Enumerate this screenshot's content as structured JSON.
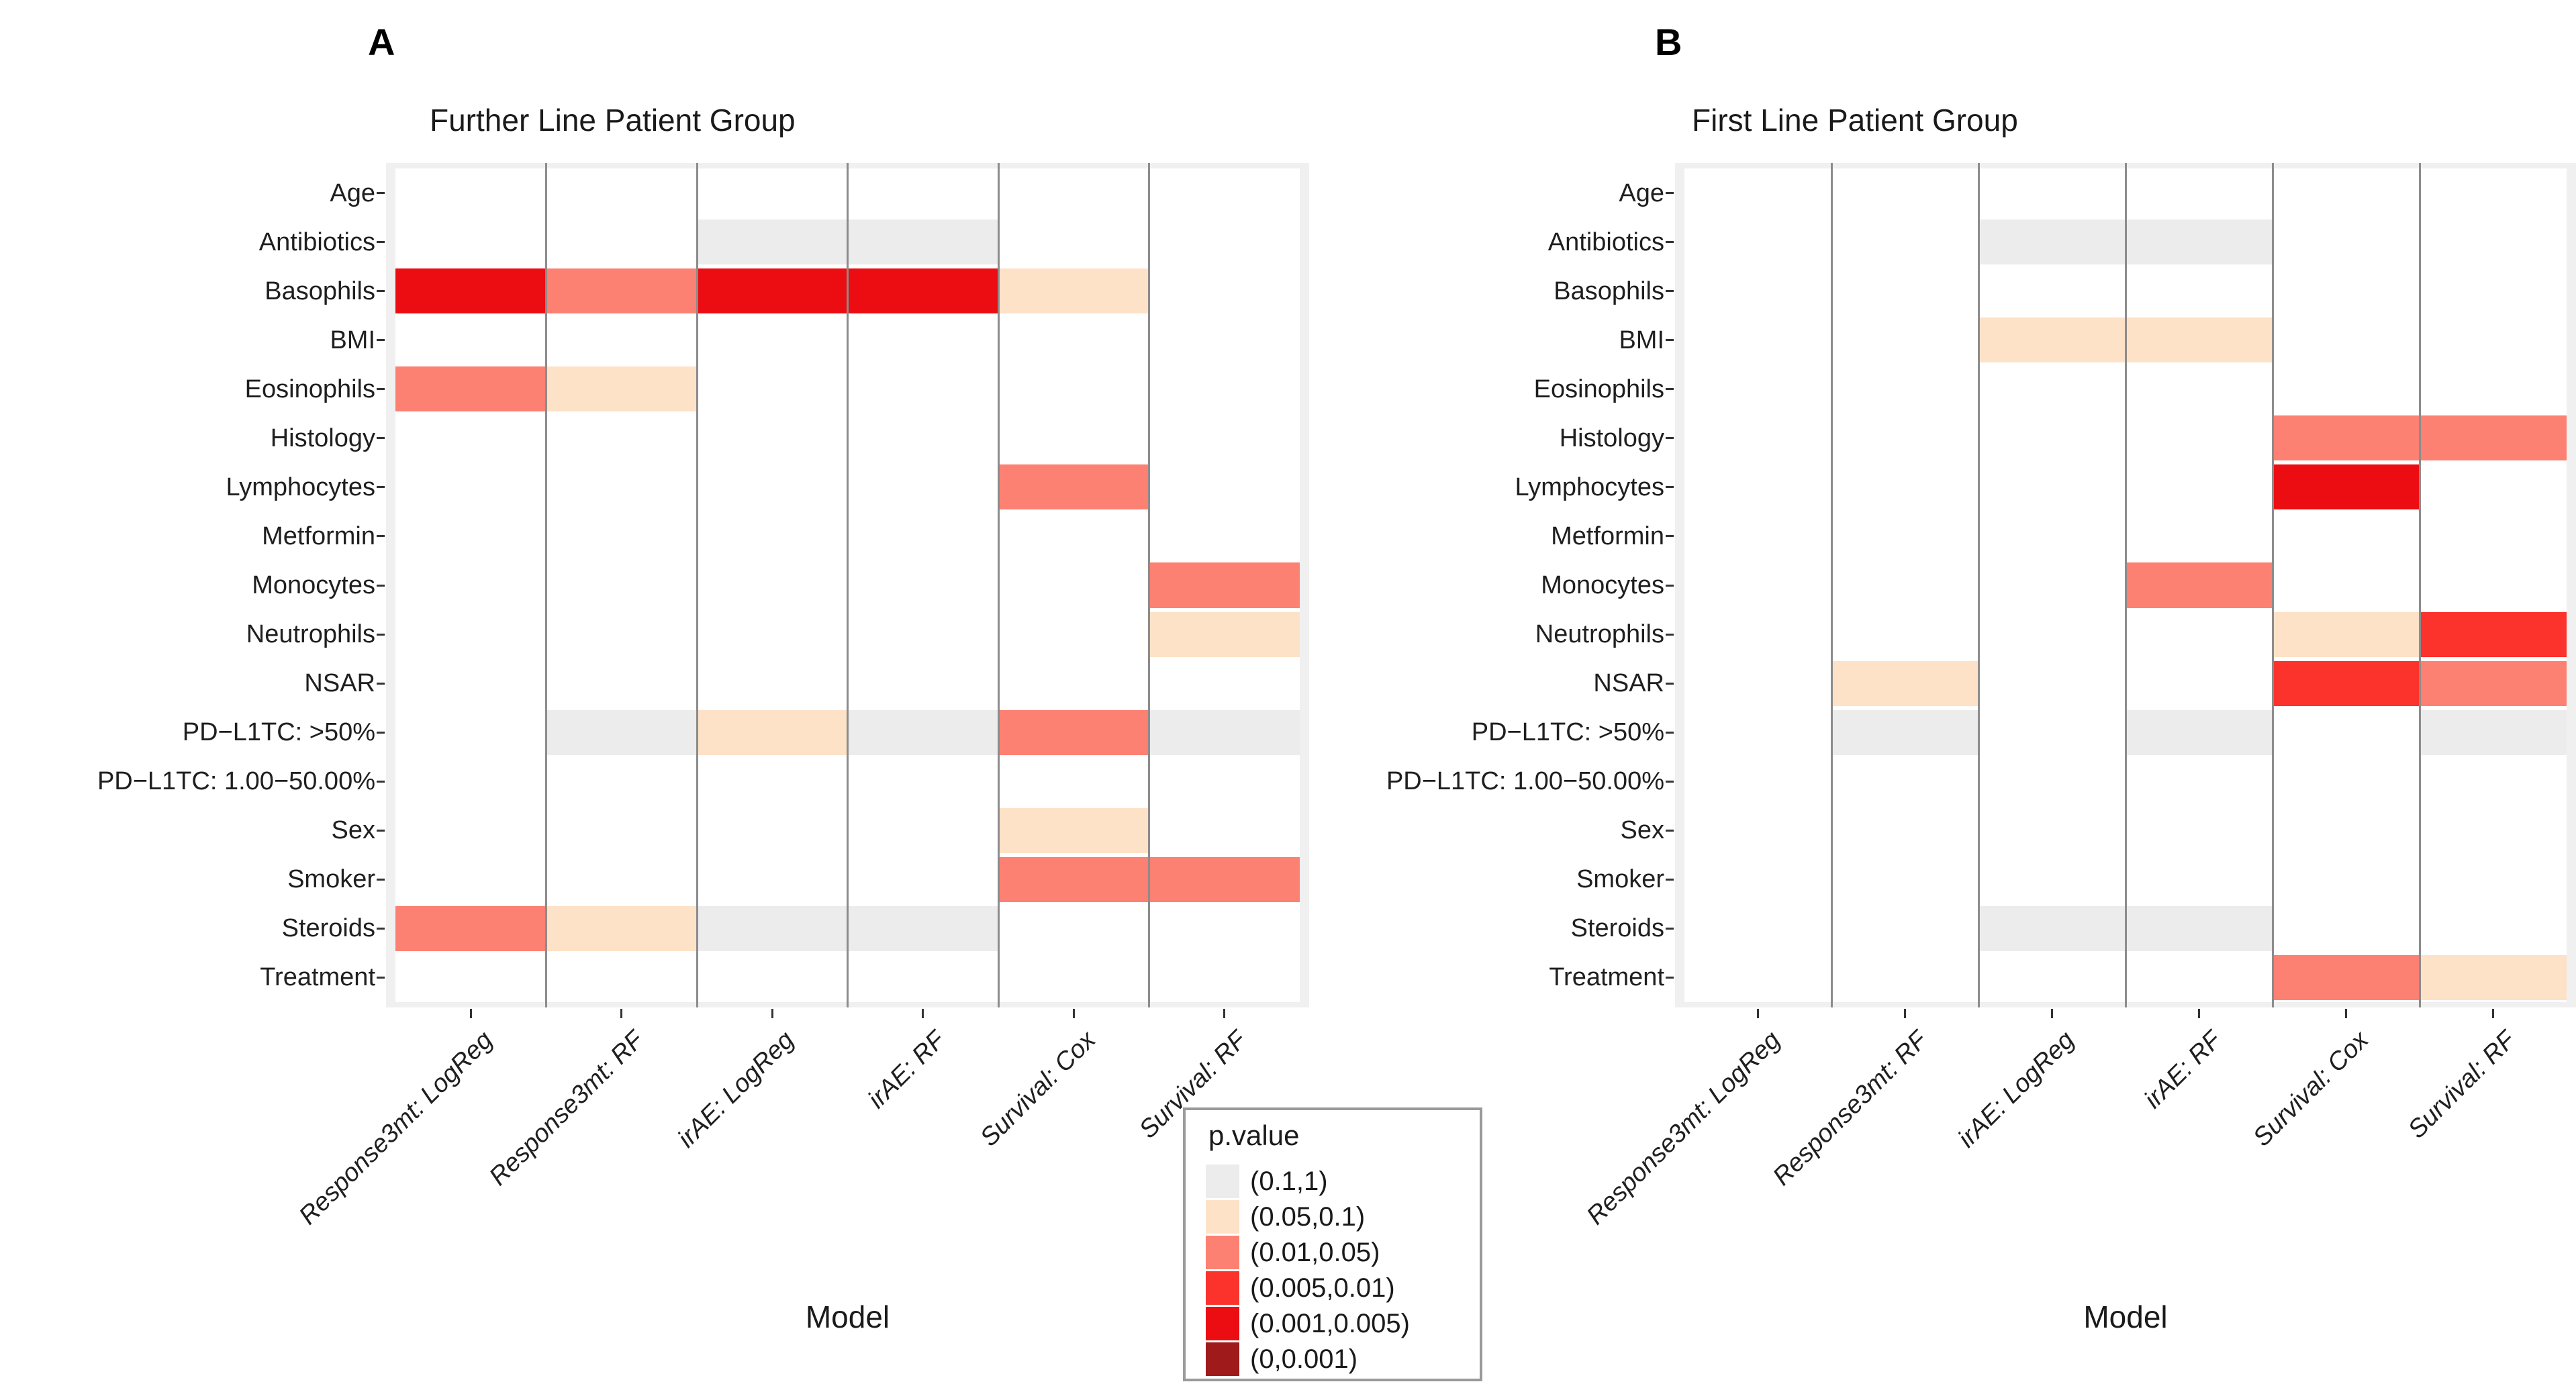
{
  "colors": {
    "panel_background": "#F0F0F0",
    "column_background": "#FFFFFF",
    "separator": "#8C8C8C",
    "tick": "#333333",
    "text": "#1A1A1A"
  },
  "legend": {
    "title": "p.value",
    "entries": [
      {
        "label": "(0.1,1)",
        "color": "#ECECEC"
      },
      {
        "label": "(0.05,0.1)",
        "color": "#FDE2C8"
      },
      {
        "label": "(0.01,0.05)",
        "color": "#FC8172"
      },
      {
        "label": "(0.005,0.01)",
        "color": "#FB332C"
      },
      {
        "label": "(0.001,0.005)",
        "color": "#EB0D11"
      },
      {
        "label": "(0,0.001)",
        "color": "#9E1A1B"
      }
    ]
  },
  "chart_data": [
    {
      "type": "heatmap",
      "panel_label": "A",
      "title": "Further Line Patient Group",
      "xlabel": "Model",
      "ylabel": "",
      "legend_position": "bottom center, between panels",
      "columns": [
        "Response3mt: LogReg",
        "Response3mt: RF",
        "irAE: LogReg",
        "irAE: RF",
        "Survival: Cox",
        "Survival: RF"
      ],
      "rows": [
        "Age",
        "Antibiotics",
        "Basophils",
        "BMI",
        "Eosinophils",
        "Histology",
        "Lymphocytes",
        "Metformin",
        "Monocytes",
        "Neutrophils",
        "NSAR",
        "PD−L1TC: >50%",
        "PD−L1TC: 1.00−50.00%",
        "Sex",
        "Smoker",
        "Steroids",
        "Treatment"
      ],
      "cells": [
        {
          "row": "Antibiotics",
          "col": "irAE: LogReg",
          "p": "(0.1,1)"
        },
        {
          "row": "Antibiotics",
          "col": "irAE: RF",
          "p": "(0.1,1)"
        },
        {
          "row": "Basophils",
          "col": "Response3mt: LogReg",
          "p": "(0.001,0.005)"
        },
        {
          "row": "Basophils",
          "col": "Response3mt: RF",
          "p": "(0.01,0.05)"
        },
        {
          "row": "Basophils",
          "col": "irAE: LogReg",
          "p": "(0.001,0.005)"
        },
        {
          "row": "Basophils",
          "col": "irAE: RF",
          "p": "(0.001,0.005)"
        },
        {
          "row": "Basophils",
          "col": "Survival: Cox",
          "p": "(0.05,0.1)"
        },
        {
          "row": "Eosinophils",
          "col": "Response3mt: LogReg",
          "p": "(0.01,0.05)"
        },
        {
          "row": "Eosinophils",
          "col": "Response3mt: RF",
          "p": "(0.05,0.1)"
        },
        {
          "row": "Lymphocytes",
          "col": "Survival: Cox",
          "p": "(0.01,0.05)"
        },
        {
          "row": "Monocytes",
          "col": "Survival: RF",
          "p": "(0.01,0.05)"
        },
        {
          "row": "Neutrophils",
          "col": "Survival: RF",
          "p": "(0.05,0.1)"
        },
        {
          "row": "PD−L1TC: >50%",
          "col": "Response3mt: RF",
          "p": "(0.1,1)"
        },
        {
          "row": "PD−L1TC: >50%",
          "col": "irAE: LogReg",
          "p": "(0.05,0.1)"
        },
        {
          "row": "PD−L1TC: >50%",
          "col": "irAE: RF",
          "p": "(0.1,1)"
        },
        {
          "row": "PD−L1TC: >50%",
          "col": "Survival: Cox",
          "p": "(0.01,0.05)"
        },
        {
          "row": "PD−L1TC: >50%",
          "col": "Survival: RF",
          "p": "(0.1,1)"
        },
        {
          "row": "Sex",
          "col": "Survival: Cox",
          "p": "(0.05,0.1)"
        },
        {
          "row": "Smoker",
          "col": "Survival: Cox",
          "p": "(0.01,0.05)"
        },
        {
          "row": "Smoker",
          "col": "Survival: RF",
          "p": "(0.01,0.05)"
        },
        {
          "row": "Steroids",
          "col": "Response3mt: LogReg",
          "p": "(0.01,0.05)"
        },
        {
          "row": "Steroids",
          "col": "Response3mt: RF",
          "p": "(0.05,0.1)"
        },
        {
          "row": "Steroids",
          "col": "irAE: LogReg",
          "p": "(0.1,1)"
        },
        {
          "row": "Steroids",
          "col": "irAE: RF",
          "p": "(0.1,1)"
        }
      ]
    },
    {
      "type": "heatmap",
      "panel_label": "B",
      "title": "First Line Patient Group",
      "xlabel": "Model",
      "ylabel": "",
      "legend_position": "shared with panel A",
      "columns": [
        "Response3mt: LogReg",
        "Response3mt: RF",
        "irAE: LogReg",
        "irAE: RF",
        "Survival: Cox",
        "Survival: RF"
      ],
      "rows": [
        "Age",
        "Antibiotics",
        "Basophils",
        "BMI",
        "Eosinophils",
        "Histology",
        "Lymphocytes",
        "Metformin",
        "Monocytes",
        "Neutrophils",
        "NSAR",
        "PD−L1TC: >50%",
        "PD−L1TC: 1.00−50.00%",
        "Sex",
        "Smoker",
        "Steroids",
        "Treatment"
      ],
      "cells": [
        {
          "row": "Antibiotics",
          "col": "irAE: LogReg",
          "p": "(0.1,1)"
        },
        {
          "row": "Antibiotics",
          "col": "irAE: RF",
          "p": "(0.1,1)"
        },
        {
          "row": "BMI",
          "col": "irAE: LogReg",
          "p": "(0.05,0.1)"
        },
        {
          "row": "BMI",
          "col": "irAE: RF",
          "p": "(0.05,0.1)"
        },
        {
          "row": "Histology",
          "col": "Survival: Cox",
          "p": "(0.01,0.05)"
        },
        {
          "row": "Histology",
          "col": "Survival: RF",
          "p": "(0.01,0.05)"
        },
        {
          "row": "Lymphocytes",
          "col": "Survival: Cox",
          "p": "(0.001,0.005)"
        },
        {
          "row": "Monocytes",
          "col": "irAE: RF",
          "p": "(0.01,0.05)"
        },
        {
          "row": "Neutrophils",
          "col": "Survival: Cox",
          "p": "(0.05,0.1)"
        },
        {
          "row": "Neutrophils",
          "col": "Survival: RF",
          "p": "(0.005,0.01)"
        },
        {
          "row": "NSAR",
          "col": "Response3mt: RF",
          "p": "(0.05,0.1)"
        },
        {
          "row": "NSAR",
          "col": "Survival: Cox",
          "p": "(0.005,0.01)"
        },
        {
          "row": "NSAR",
          "col": "Survival: RF",
          "p": "(0.01,0.05)"
        },
        {
          "row": "PD−L1TC: >50%",
          "col": "Response3mt: RF",
          "p": "(0.1,1)"
        },
        {
          "row": "PD−L1TC: >50%",
          "col": "irAE: RF",
          "p": "(0.1,1)"
        },
        {
          "row": "PD−L1TC: >50%",
          "col": "Survival: RF",
          "p": "(0.1,1)"
        },
        {
          "row": "Steroids",
          "col": "irAE: LogReg",
          "p": "(0.1,1)"
        },
        {
          "row": "Steroids",
          "col": "irAE: RF",
          "p": "(0.1,1)"
        },
        {
          "row": "Treatment",
          "col": "Survival: Cox",
          "p": "(0.01,0.05)"
        },
        {
          "row": "Treatment",
          "col": "Survival: RF",
          "p": "(0.05,0.1)"
        }
      ]
    }
  ]
}
